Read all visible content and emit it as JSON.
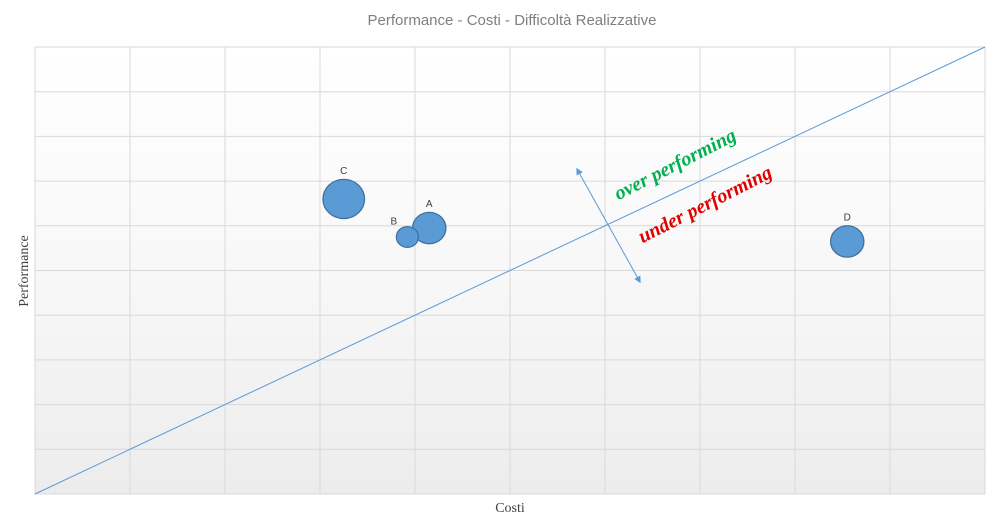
{
  "chart_data": {
    "type": "bubble",
    "title": "Performance - Costi - Difficoltà Realizzative",
    "xlabel": "Costi",
    "ylabel": "Performance",
    "xlim": [
      0,
      10
    ],
    "ylim": [
      0,
      10
    ],
    "grid": true,
    "bubble_color": "#5b9bd5",
    "bubble_stroke": "#41719c",
    "points": [
      {
        "label": "A",
        "x": 4.15,
        "y": 5.95,
        "size": 1.6
      },
      {
        "label": "B",
        "x": 3.92,
        "y": 5.75,
        "size": 0.7
      },
      {
        "label": "C",
        "x": 3.25,
        "y": 6.6,
        "size": 2.5
      },
      {
        "label": "D",
        "x": 8.55,
        "y": 5.65,
        "size": 1.6
      }
    ],
    "reference_line": {
      "from": [
        0,
        0
      ],
      "to": [
        10,
        10
      ],
      "color": "#5b9bd5"
    },
    "annotations": [
      {
        "text": "over performing",
        "color": "#00b050"
      },
      {
        "text": "under performing",
        "color": "#e00000"
      }
    ]
  }
}
